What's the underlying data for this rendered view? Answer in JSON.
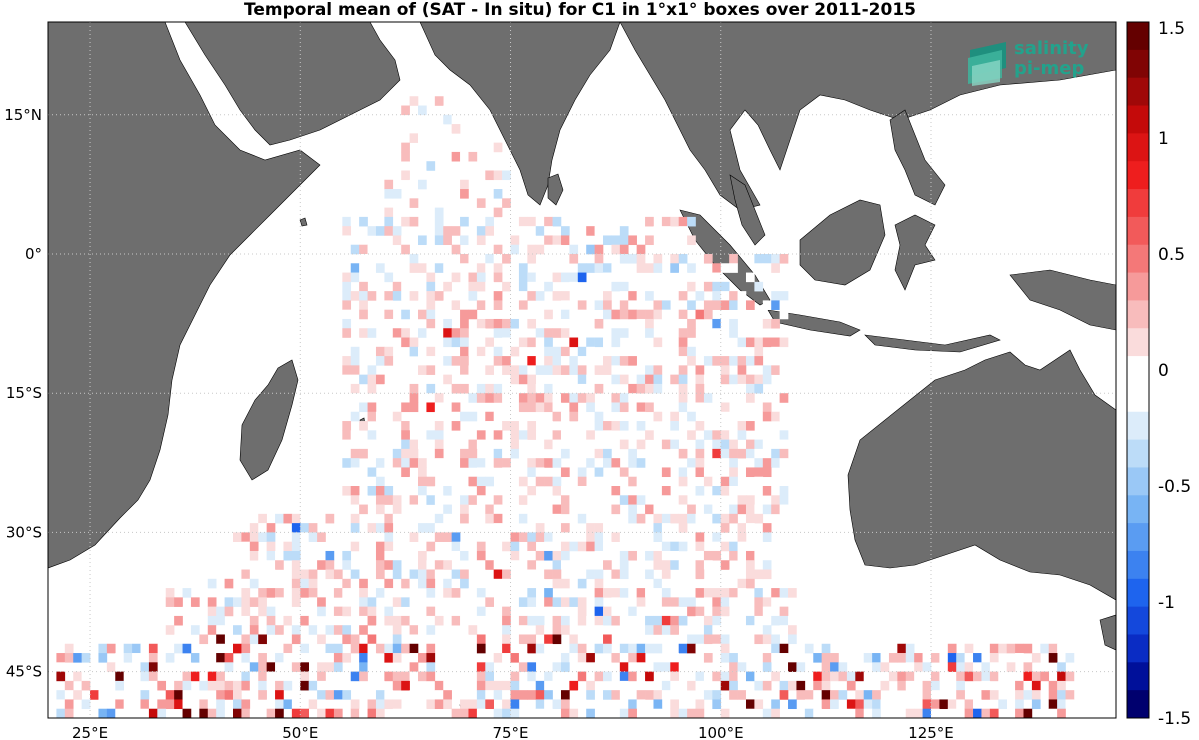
{
  "title": "Temporal mean of (SAT - In situ) for C1 in 1°x1° boxes over 2011-2015",
  "logo": {
    "line1": "salinity",
    "line2": "pi-mep",
    "color": "#23a28c"
  },
  "map": {
    "lon_range": [
      20,
      147
    ],
    "lat_range": [
      -50,
      25
    ],
    "grid": "dotted",
    "land_color": "#6e6e6e",
    "lon_ticks": [
      {
        "value": 25,
        "label": "25°E"
      },
      {
        "value": 50,
        "label": "50°E"
      },
      {
        "value": 75,
        "label": "75°E"
      },
      {
        "value": 100,
        "label": "100°E"
      },
      {
        "value": 125,
        "label": "125°E"
      }
    ],
    "lat_ticks": [
      {
        "value": 15,
        "label": "15°N"
      },
      {
        "value": 0,
        "label": "0°"
      },
      {
        "value": -15,
        "label": "15°S"
      },
      {
        "value": -30,
        "label": "30°S"
      },
      {
        "value": -45,
        "label": "45°S"
      }
    ]
  },
  "colorbar": {
    "range": [
      -1.5,
      1.5
    ],
    "ticks": [
      "1.5",
      "1",
      "0.5",
      "0",
      "-0.5",
      "-1",
      "-1.5"
    ],
    "tick_values": [
      1.5,
      1,
      0.5,
      0,
      -0.5,
      -1,
      -1.5
    ],
    "colors": [
      "#00006e",
      "#00109a",
      "#0a2cc4",
      "#1448dc",
      "#1e64ee",
      "#3c82f0",
      "#5a9cf2",
      "#78b4f4",
      "#9ac8f6",
      "#bcdcf8",
      "#dcecfa",
      "#ffffff",
      "#ffffff",
      "#fadcdc",
      "#f8bcbc",
      "#f69a9a",
      "#f47878",
      "#f25a5a",
      "#f03c3c",
      "#ee1e1e",
      "#dc1414",
      "#c40a0a",
      "#a00808",
      "#800404",
      "#640000"
    ]
  },
  "chart_data": {
    "type": "heatmap",
    "title": "Temporal mean of (SAT - In situ) for C1 in 1°x1° boxes over 2011-2015",
    "xlabel": "",
    "ylabel": "",
    "x_range": [
      20,
      147
    ],
    "y_range": [
      -50,
      25
    ],
    "value_range": [
      -1.5,
      1.5
    ],
    "description": "Gridded 1°x1° cells over the Indian Ocean; mostly small values between -0.3 and 0.3 with stronger positive and negative anomalies concentrated south of 40°S"
  }
}
